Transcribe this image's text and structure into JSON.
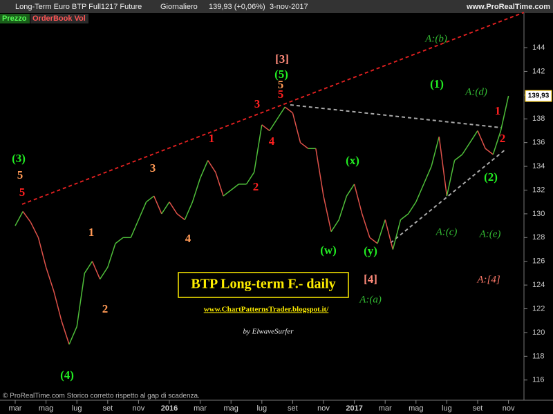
{
  "header": {
    "instrument": "Long-Term Euro BTP Full1217 Future",
    "period": "Giornaliero",
    "quote": "139,93 (+0,06%)",
    "date": "3-nov-2017",
    "site": "www.ProRealTime.com"
  },
  "panel_tabs": [
    "Prezzo",
    "OrderBook Vol"
  ],
  "footer": "© ProRealTime.com  Storico corretto rispetto al gap di scadenza.",
  "chart_data": {
    "type": "line",
    "categories": [
      "mar",
      null,
      null,
      null,
      "mag",
      null,
      null,
      null,
      "lug",
      null,
      null,
      null,
      "set",
      null,
      null,
      null,
      "nov",
      null,
      null,
      null,
      "2016",
      null,
      null,
      null,
      "mar",
      null,
      null,
      null,
      "mag",
      null,
      null,
      null,
      "lug",
      null,
      null,
      null,
      "set",
      null,
      null,
      null,
      "nov",
      null,
      null,
      null,
      "2017",
      null,
      null,
      null,
      "mar",
      null,
      null,
      null,
      "mag",
      null,
      null,
      null,
      "lug",
      null,
      null,
      null,
      "set",
      null,
      null,
      null,
      "nov"
    ],
    "values": [
      129,
      130.2,
      129.3,
      128,
      125.5,
      123.5,
      121,
      119,
      120.5,
      125,
      126,
      124.5,
      125.5,
      127.5,
      128,
      128,
      129.5,
      131,
      131.5,
      130,
      131,
      130,
      129.5,
      131,
      133,
      134.5,
      133.5,
      131.5,
      132,
      132.5,
      132.5,
      133.5,
      137.5,
      137,
      138,
      139,
      138.5,
      136,
      135.5,
      135.5,
      131.5,
      128.5,
      129.5,
      131.5,
      132.5,
      130,
      128,
      127.5,
      129.5,
      127,
      129.5,
      130,
      131,
      132.5,
      134,
      136.5,
      131.5,
      134.5,
      135,
      136,
      137,
      135.5,
      135,
      137,
      139.93
    ],
    "value_labels": [
      null,
      null,
      null,
      null,
      null,
      null,
      null,
      null,
      null,
      null,
      null,
      null,
      null,
      null,
      null,
      null,
      null,
      null,
      null,
      null,
      null,
      null,
      null,
      null,
      null,
      null,
      null,
      null,
      null,
      null,
      null,
      null,
      null,
      null,
      null,
      null,
      null,
      null,
      null,
      null,
      null,
      null,
      null,
      null,
      null,
      null,
      null,
      null,
      null,
      null,
      null,
      null,
      null,
      null,
      null,
      null,
      null,
      null,
      null,
      null,
      null,
      null,
      null,
      null,
      "139,93"
    ],
    "up_color": "#4fbf3a",
    "down_color": "#e0524a",
    "ylim": [
      114.3,
      146.85
    ],
    "yticks": [
      116,
      118,
      120,
      122,
      124,
      126,
      128,
      130,
      132,
      134,
      136,
      138,
      140,
      142,
      144
    ],
    "annotations": [
      {
        "text": "(3)",
        "color": "#22ee22"
      },
      {
        "text": "5",
        "color": "#ff9955"
      },
      {
        "text": "5",
        "color": "#ff2020"
      },
      {
        "text": "1",
        "color": "#ff9955"
      },
      {
        "text": "2",
        "color": "#ff9955"
      },
      {
        "text": "3",
        "color": "#ff9955"
      },
      {
        "text": "4",
        "color": "#ff9955"
      },
      {
        "text": "(4)",
        "color": "#22ee22"
      },
      {
        "text": "1",
        "color": "#ff2020"
      },
      {
        "text": "2",
        "color": "#ff2020"
      },
      {
        "text": "3",
        "color": "#ff2020"
      },
      {
        "text": "4",
        "color": "#ff2020"
      },
      {
        "text": "5",
        "color": "#ff9955"
      },
      {
        "text": "5",
        "color": "#ff2020"
      },
      {
        "text": "[3]",
        "color": "#ff8a7a"
      },
      {
        "text": "(5)",
        "color": "#22ee22"
      },
      {
        "text": "(x)",
        "color": "#22ee22"
      },
      {
        "text": "(w)",
        "color": "#22ee22"
      },
      {
        "text": "(y)",
        "color": "#22ee22"
      },
      {
        "text": "[4]",
        "color": "#ff8a7a"
      },
      {
        "text": "(1)",
        "color": "#22ee22"
      },
      {
        "text": "(2)",
        "color": "#22ee22"
      },
      {
        "text": "1",
        "color": "#ff2020"
      },
      {
        "text": "2",
        "color": "#ff2020"
      },
      {
        "text": "A:(b)",
        "color": "#33bb33",
        "font": "italic"
      },
      {
        "text": "A:(d)",
        "color": "#33bb33",
        "font": "italic"
      },
      {
        "text": "A:(c)",
        "color": "#33bb33",
        "font": "italic"
      },
      {
        "text": "A:(e)",
        "color": "#33bb33",
        "font": "italic"
      },
      {
        "text": "A:(a)",
        "color": "#33bb33",
        "font": "italic"
      },
      {
        "text": "A:[4]",
        "color": "#ff7a6a",
        "font": "italic"
      }
    ],
    "title": "BTP Long-term F.- daily",
    "source": "www.ChartPatternsTrader.blogspot.it/",
    "author": "by ElwaveSurfer"
  }
}
